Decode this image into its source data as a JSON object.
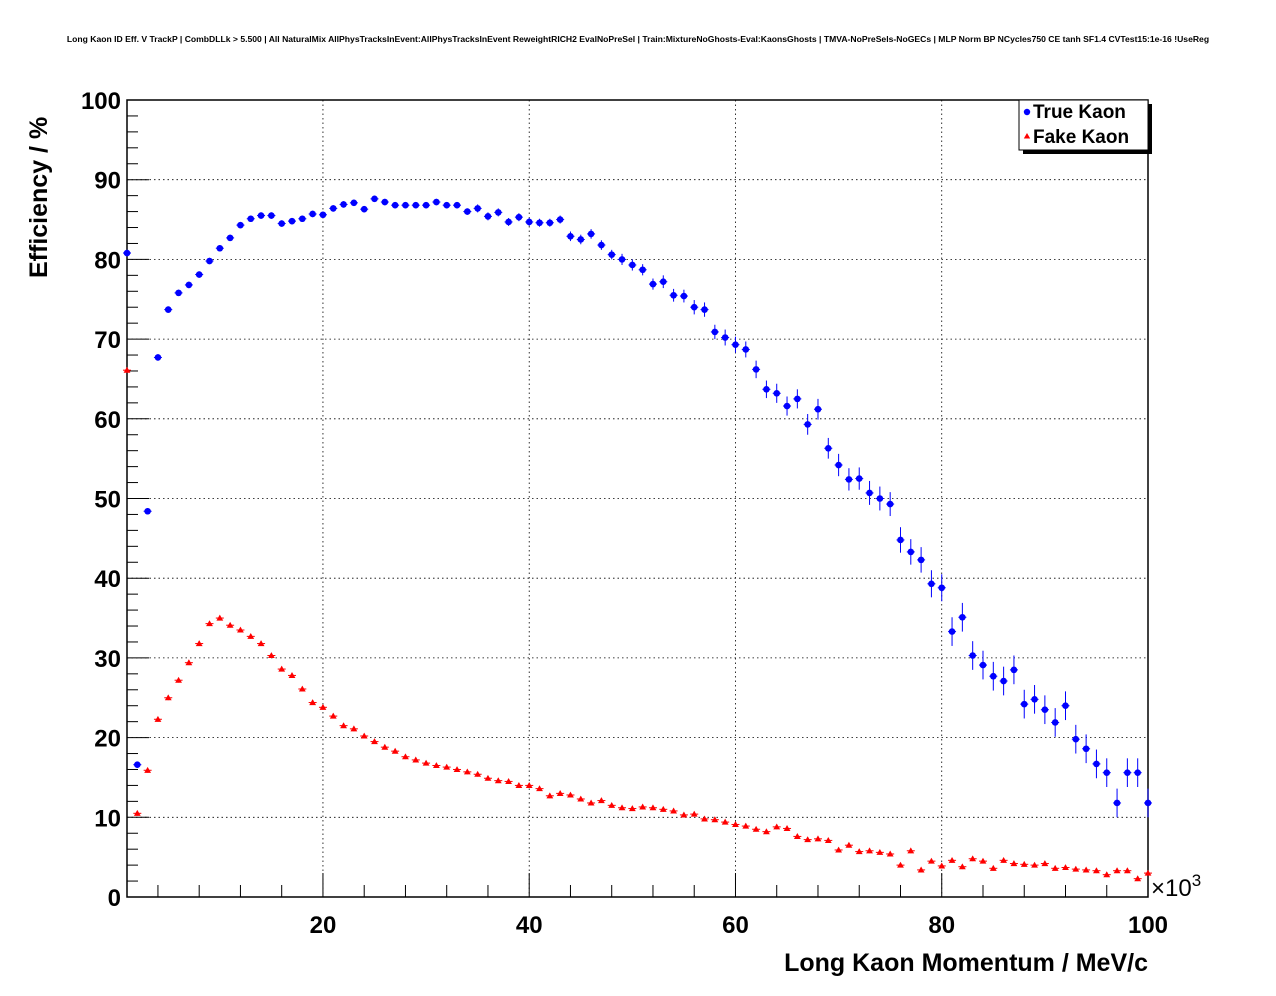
{
  "page": {
    "title": "Long Kaon ID Eff. V TrackP | CombDLLk > 5.500 | All NaturalMix AllPhysTracksInEvent:AllPhysTracksInEvent ReweightRICH2 EvalNoPreSel | Train:MixtureNoGhosts-Eval:KaonsGhosts | TMVA-NoPreSels-NoGECs | MLP Norm BP NCycles750 CE tanh SF1.4 CVTest15:1e-16 !UseReg"
  },
  "chart_data": {
    "type": "scatter",
    "title": "Long Kaon ID Eff. V TrackP | CombDLLk > 5.500 | All NaturalMix AllPhysTracksInEvent:AllPhysTracksInEvent ReweightRICH2 EvalNoPreSel | Train:MixtureNoGhosts-Eval:KaonsGhosts | TMVA-NoPreSels-NoGECs | MLP Norm BP NCycles750 CE tanh SF1.4 CVTest15:1e-16 !UseReg",
    "xlabel": "Long Kaon Momentum / MeV/c",
    "ylabel": "Efficiency / %",
    "x_multiplier_label": "×10",
    "x_multiplier_exponent": "3",
    "xlim": [
      1000,
      100000
    ],
    "ylim": [
      0,
      100
    ],
    "x_ticks": [
      20000,
      40000,
      60000,
      80000,
      100000
    ],
    "x_tick_labels": [
      "20",
      "40",
      "60",
      "80",
      "100"
    ],
    "y_ticks": [
      0,
      10,
      20,
      30,
      40,
      50,
      60,
      70,
      80,
      90,
      100
    ],
    "y_tick_labels": [
      "0",
      "10",
      "20",
      "30",
      "40",
      "50",
      "60",
      "70",
      "80",
      "90",
      "100"
    ],
    "grid": true,
    "legend_position": "top-right",
    "series": [
      {
        "name": "True Kaon",
        "color": "#0000ff",
        "marker": "circle",
        "x_start": 1000,
        "x_step": 1000,
        "values": [
          80.8,
          16.6,
          48.4,
          67.7,
          73.7,
          75.8,
          76.8,
          78.1,
          79.8,
          81.4,
          82.7,
          84.3,
          85.1,
          85.5,
          85.5,
          84.5,
          84.8,
          85.1,
          85.7,
          85.6,
          86.4,
          86.9,
          87.1,
          86.3,
          87.6,
          87.2,
          86.8,
          86.8,
          86.8,
          86.8,
          87.2,
          86.8,
          86.8,
          86.0,
          86.4,
          85.4,
          85.9,
          84.7,
          85.3,
          84.7,
          84.6,
          84.6,
          85.0,
          82.9,
          82.5,
          83.2,
          81.8,
          80.6,
          80.0,
          79.3,
          78.7,
          76.9,
          77.2,
          75.5,
          75.4,
          74.0,
          73.7,
          70.9,
          70.2,
          69.3,
          68.7,
          66.2,
          63.7,
          63.2,
          61.6,
          62.5,
          59.3,
          61.2,
          56.3,
          54.2,
          52.4,
          52.5,
          50.7,
          50.0,
          49.3,
          44.8,
          43.3,
          42.3,
          39.3,
          38.8,
          33.3,
          35.1,
          30.3,
          29.1,
          27.7,
          27.1,
          28.5,
          24.2,
          24.8,
          23.5,
          21.9,
          24.0,
          19.8,
          18.6,
          16.7,
          15.6,
          11.8,
          15.6,
          15.6,
          11.8
        ],
        "errors": [
          0.4,
          0.4,
          0.4,
          0.4,
          0.4,
          0.4,
          0.4,
          0.4,
          0.4,
          0.4,
          0.4,
          0.4,
          0.4,
          0.4,
          0.4,
          0.4,
          0.4,
          0.4,
          0.4,
          0.4,
          0.4,
          0.4,
          0.4,
          0.4,
          0.4,
          0.4,
          0.4,
          0.4,
          0.4,
          0.4,
          0.4,
          0.4,
          0.4,
          0.4,
          0.5,
          0.5,
          0.5,
          0.5,
          0.5,
          0.5,
          0.5,
          0.5,
          0.5,
          0.6,
          0.6,
          0.6,
          0.6,
          0.6,
          0.7,
          0.7,
          0.7,
          0.7,
          0.8,
          0.8,
          0.8,
          0.9,
          0.9,
          0.9,
          1.0,
          1.0,
          1.0,
          1.1,
          1.1,
          1.2,
          1.2,
          1.2,
          1.3,
          1.3,
          1.3,
          1.4,
          1.4,
          1.4,
          1.5,
          1.5,
          1.5,
          1.6,
          1.6,
          1.6,
          1.7,
          1.7,
          1.8,
          1.8,
          1.8,
          1.8,
          1.8,
          1.8,
          1.8,
          1.8,
          1.8,
          1.8,
          1.8,
          1.8,
          1.8,
          1.8,
          1.8,
          1.8,
          1.8,
          1.8,
          1.8,
          1.8
        ]
      },
      {
        "name": "Fake Kaon",
        "color": "#ff0000",
        "marker": "triangle",
        "x_start": 1000,
        "x_step": 1000,
        "values": [
          66.1,
          10.5,
          15.9,
          22.3,
          25.0,
          27.2,
          29.4,
          31.8,
          34.3,
          35.0,
          34.1,
          33.5,
          32.7,
          31.8,
          30.3,
          28.6,
          27.8,
          26.1,
          24.4,
          23.8,
          22.7,
          21.5,
          21.1,
          20.2,
          19.5,
          18.8,
          18.3,
          17.6,
          17.2,
          16.8,
          16.5,
          16.3,
          16.0,
          15.7,
          15.4,
          14.9,
          14.6,
          14.5,
          14.0,
          14.0,
          13.6,
          12.7,
          13.0,
          12.8,
          12.3,
          11.8,
          12.1,
          11.5,
          11.2,
          11.1,
          11.3,
          11.2,
          11.0,
          10.8,
          10.3,
          10.4,
          9.8,
          9.7,
          9.4,
          9.1,
          8.9,
          8.5,
          8.2,
          8.8,
          8.6,
          7.6,
          7.2,
          7.3,
          7.1,
          5.9,
          6.5,
          5.7,
          5.8,
          5.6,
          5.4,
          4.0,
          5.8,
          3.4,
          4.5,
          3.9,
          4.6,
          3.8,
          4.8,
          4.5,
          3.6,
          4.6,
          4.2,
          4.1,
          4.0,
          4.2,
          3.6,
          3.7,
          3.5,
          3.4,
          3.3,
          2.8,
          3.3,
          3.3,
          2.3,
          3.0
        ],
        "errors": [
          0.3,
          0.3,
          0.3,
          0.3,
          0.3,
          0.3,
          0.3,
          0.3,
          0.3,
          0.3,
          0.3,
          0.3,
          0.3,
          0.3,
          0.3,
          0.3,
          0.3,
          0.3,
          0.3,
          0.3,
          0.3,
          0.3,
          0.3,
          0.3,
          0.3,
          0.3,
          0.3,
          0.3,
          0.3,
          0.3,
          0.3,
          0.3,
          0.3,
          0.3,
          0.3,
          0.3,
          0.3,
          0.3,
          0.3,
          0.3,
          0.3,
          0.3,
          0.3,
          0.3,
          0.3,
          0.3,
          0.3,
          0.3,
          0.3,
          0.3,
          0.3,
          0.3,
          0.3,
          0.3,
          0.3,
          0.3,
          0.3,
          0.3,
          0.3,
          0.3,
          0.3,
          0.3,
          0.3,
          0.3,
          0.3,
          0.3,
          0.3,
          0.3,
          0.3,
          0.3,
          0.3,
          0.3,
          0.3,
          0.3,
          0.3,
          0.3,
          0.3,
          0.3,
          0.3,
          0.3,
          0.3,
          0.3,
          0.3,
          0.3,
          0.3,
          0.3,
          0.3,
          0.3,
          0.3,
          0.3,
          0.3,
          0.3,
          0.3,
          0.3,
          0.3,
          0.3,
          0.3,
          0.3,
          0.3,
          0.3
        ]
      }
    ]
  }
}
